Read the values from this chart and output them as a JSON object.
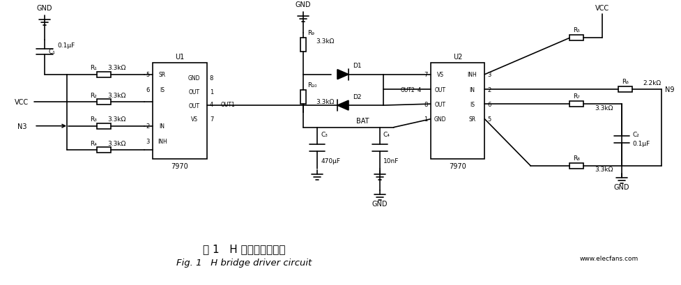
{
  "title_cn": "图 1   H 桥电机驱动电路",
  "title_en": "Fig. 1   H bridge driver circuit",
  "watermark": "www.elecfans.com",
  "bg_color": "#ffffff",
  "line_color": "#000000",
  "fig_width": 9.78,
  "fig_height": 4.1,
  "dpi": 100
}
